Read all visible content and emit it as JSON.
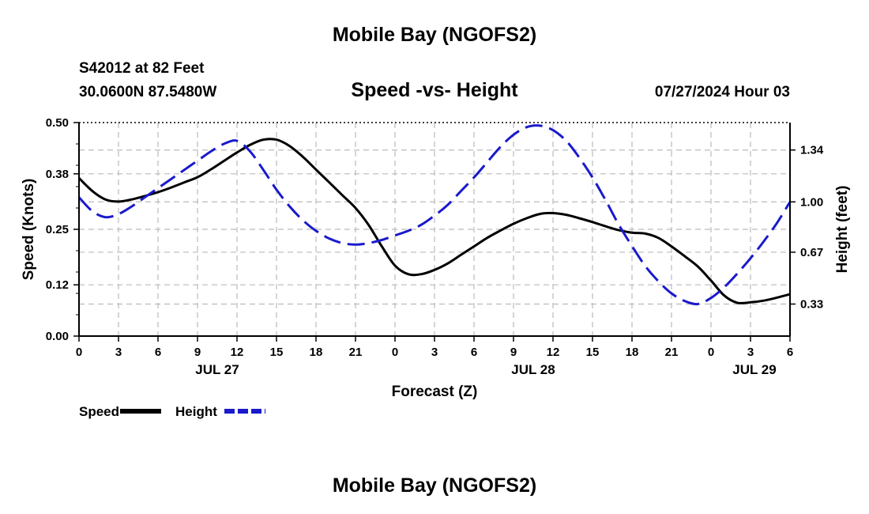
{
  "header": {
    "title": "Mobile Bay (NGOFS2)",
    "station": "S42012 at 82 Feet",
    "coordinates": "30.0600N  87.5480W",
    "subtitle": "Speed -vs- Height",
    "datetime": "07/27/2024 Hour 03"
  },
  "footer": {
    "title": "Mobile Bay (NGOFS2)"
  },
  "colors": {
    "speed": "#000000",
    "height": "#1a1acc",
    "grid": "#bbbbbb"
  },
  "chart_data": {
    "type": "line",
    "xlabel": "Forecast (Z)",
    "ylabel_left": "Speed (Knots)",
    "ylabel_right": "Height (feet)",
    "x_hours_range": [
      0,
      54
    ],
    "x_tick_labels": [
      "0",
      "3",
      "6",
      "9",
      "12",
      "15",
      "18",
      "21",
      "0",
      "3",
      "6",
      "9",
      "12",
      "15",
      "18",
      "21",
      "0",
      "3",
      "6"
    ],
    "date_labels": [
      {
        "label": "JUL 27",
        "hour": 10.5
      },
      {
        "label": "JUL 28",
        "hour": 34.5
      },
      {
        "label": "JUL 29",
        "hour": 51.3
      }
    ],
    "left_axis": {
      "range": [
        0,
        0.5
      ],
      "ticks": [
        "0.00",
        "0.12",
        "0.25",
        "0.38",
        "0.50"
      ],
      "tick_values": [
        0,
        0.12,
        0.25,
        0.38,
        0.5
      ]
    },
    "right_axis": {
      "range": [
        0.12,
        1.52
      ],
      "ticks": [
        "0.33",
        "0.67",
        "1.00",
        "1.34"
      ],
      "tick_values": [
        0.33,
        0.67,
        1.0,
        1.34
      ]
    },
    "series": [
      {
        "name": "Speed",
        "axis": "left",
        "style": "solid",
        "x": [
          0,
          1,
          2,
          3,
          4,
          5,
          6,
          7,
          8,
          9,
          10,
          11,
          12,
          13,
          14,
          15,
          16,
          17,
          18,
          19,
          20,
          21,
          22,
          23,
          24,
          25,
          26,
          27,
          28,
          29,
          30,
          31,
          32,
          33,
          34,
          35,
          36,
          37,
          38,
          39,
          40,
          41,
          42,
          43,
          44,
          45,
          46,
          47,
          48,
          49,
          50,
          51,
          52,
          53,
          54
        ],
        "values": [
          0.37,
          0.34,
          0.32,
          0.315,
          0.32,
          0.328,
          0.337,
          0.348,
          0.36,
          0.372,
          0.39,
          0.41,
          0.43,
          0.448,
          0.46,
          0.46,
          0.445,
          0.42,
          0.39,
          0.36,
          0.33,
          0.3,
          0.26,
          0.21,
          0.165,
          0.145,
          0.145,
          0.155,
          0.17,
          0.19,
          0.21,
          0.23,
          0.247,
          0.263,
          0.276,
          0.286,
          0.288,
          0.284,
          0.276,
          0.267,
          0.257,
          0.248,
          0.242,
          0.24,
          0.23,
          0.21,
          0.187,
          0.163,
          0.13,
          0.095,
          0.078,
          0.079,
          0.083,
          0.09,
          0.098
        ]
      },
      {
        "name": "Height",
        "axis": "right",
        "style": "dashed",
        "x": [
          0,
          1,
          2,
          3,
          4,
          5,
          6,
          7,
          8,
          9,
          10,
          11,
          12,
          13,
          14,
          15,
          16,
          17,
          18,
          19,
          20,
          21,
          22,
          23,
          24,
          25,
          26,
          27,
          28,
          29,
          30,
          31,
          32,
          33,
          34,
          35,
          36,
          37,
          38,
          39,
          40,
          41,
          42,
          43,
          44,
          45,
          46,
          47,
          48,
          49,
          50,
          51,
          52,
          53,
          54
        ],
        "values": [
          1.03,
          0.94,
          0.9,
          0.92,
          0.97,
          1.03,
          1.09,
          1.15,
          1.21,
          1.27,
          1.33,
          1.38,
          1.4,
          1.33,
          1.21,
          1.08,
          0.97,
          0.88,
          0.81,
          0.76,
          0.73,
          0.72,
          0.73,
          0.75,
          0.78,
          0.81,
          0.85,
          0.91,
          0.98,
          1.07,
          1.16,
          1.26,
          1.36,
          1.44,
          1.49,
          1.5,
          1.47,
          1.4,
          1.29,
          1.16,
          1.01,
          0.85,
          0.71,
          0.58,
          0.48,
          0.4,
          0.35,
          0.33,
          0.37,
          0.44,
          0.53,
          0.63,
          0.74,
          0.86,
          1.0
        ]
      }
    ],
    "legend": [
      {
        "label": "Speed",
        "color": "#000000",
        "style": "solid"
      },
      {
        "label": "Height",
        "color": "#1a1acc",
        "style": "dashed"
      }
    ]
  }
}
